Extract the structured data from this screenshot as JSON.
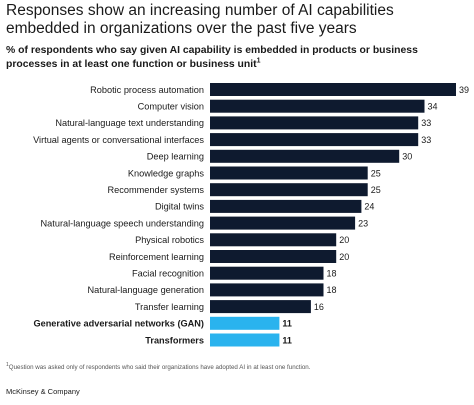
{
  "title": "Responses show an increasing number of AI capabilities embedded in organizations over the past five years",
  "subtitle": "% of respondents who say given AI capability is embedded in products or business processes in at least one function or business unit",
  "subtitle_footnote_marker": "1",
  "footnote_marker": "1",
  "footnote": "Question was asked only of respondents who said their organizations have adopted AI in at least one function.",
  "source": "McKinsey & Company",
  "colors": {
    "default_bar": "#0e1a2f",
    "highlight_bar": "#2ab3ee",
    "text": "#1a1a1a"
  },
  "chart_data": {
    "type": "bar",
    "orientation": "horizontal",
    "categories": [
      "Robotic process automation",
      "Computer vision",
      "Natural-language text understanding",
      "Virtual agents or conversational interfaces",
      "Deep learning",
      "Knowledge graphs",
      "Recommender systems",
      "Digital twins",
      "Natural-language speech understanding",
      "Physical robotics",
      "Reinforcement learning",
      "Facial recognition",
      "Natural-language generation",
      "Transfer learning",
      "Generative adversarial networks (GAN)",
      "Transformers"
    ],
    "values": [
      39,
      34,
      33,
      33,
      30,
      25,
      25,
      24,
      23,
      20,
      20,
      18,
      18,
      16,
      11,
      11
    ],
    "highlighted": [
      false,
      false,
      false,
      false,
      false,
      false,
      false,
      false,
      false,
      false,
      false,
      false,
      false,
      false,
      true,
      true
    ],
    "data_labels": true,
    "grid": false,
    "legend": "none"
  }
}
